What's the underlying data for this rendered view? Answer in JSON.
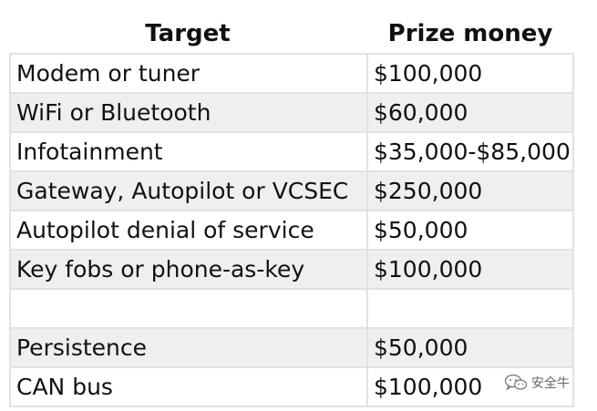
{
  "table": {
    "headers": {
      "target": "Target",
      "prize": "Prize money"
    },
    "rows": [
      {
        "target": "Modem or tuner",
        "prize": "$100,000"
      },
      {
        "target": "WiFi or Bluetooth",
        "prize": "$60,000"
      },
      {
        "target": "Infotainment",
        "prize": "$35,000-$85,000"
      },
      {
        "target": "Gateway, Autopilot or VCSEC",
        "prize": "$250,000"
      },
      {
        "target": "Autopilot denial of service",
        "prize": "$50,000"
      },
      {
        "target": "Key fobs or phone-as-key",
        "prize": "$100,000"
      },
      {
        "target": "",
        "prize": ""
      },
      {
        "target": "Persistence",
        "prize": "$50,000"
      },
      {
        "target": "CAN bus",
        "prize": "$100,000"
      }
    ]
  },
  "watermark": {
    "icon": "wechat-icon",
    "text": "安全牛"
  }
}
